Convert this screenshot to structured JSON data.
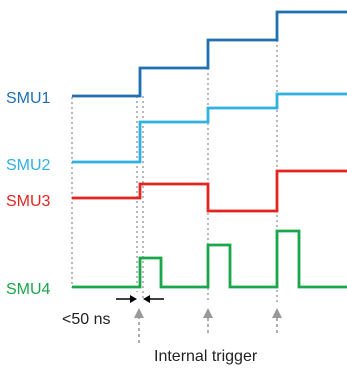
{
  "colors": {
    "smu1": "#1f6fb3",
    "smu2": "#30b0e3",
    "smu3": "#e52421",
    "smu4": "#1aa64b",
    "guide": "#8a8a8a",
    "arrow": "#999999",
    "text": "#222222"
  },
  "signals": [
    {
      "key": "smu1",
      "label": "SMU1",
      "color": "#1f6fb3"
    },
    {
      "key": "smu2",
      "label": "SMU2",
      "color": "#30b0e3"
    },
    {
      "key": "smu3",
      "label": "SMU3",
      "color": "#e52421"
    },
    {
      "key": "smu4",
      "label": "SMU4",
      "color": "#1aa64b"
    }
  ],
  "annotations": {
    "delay": "<50 ns",
    "trigger": "Internal trigger"
  }
}
